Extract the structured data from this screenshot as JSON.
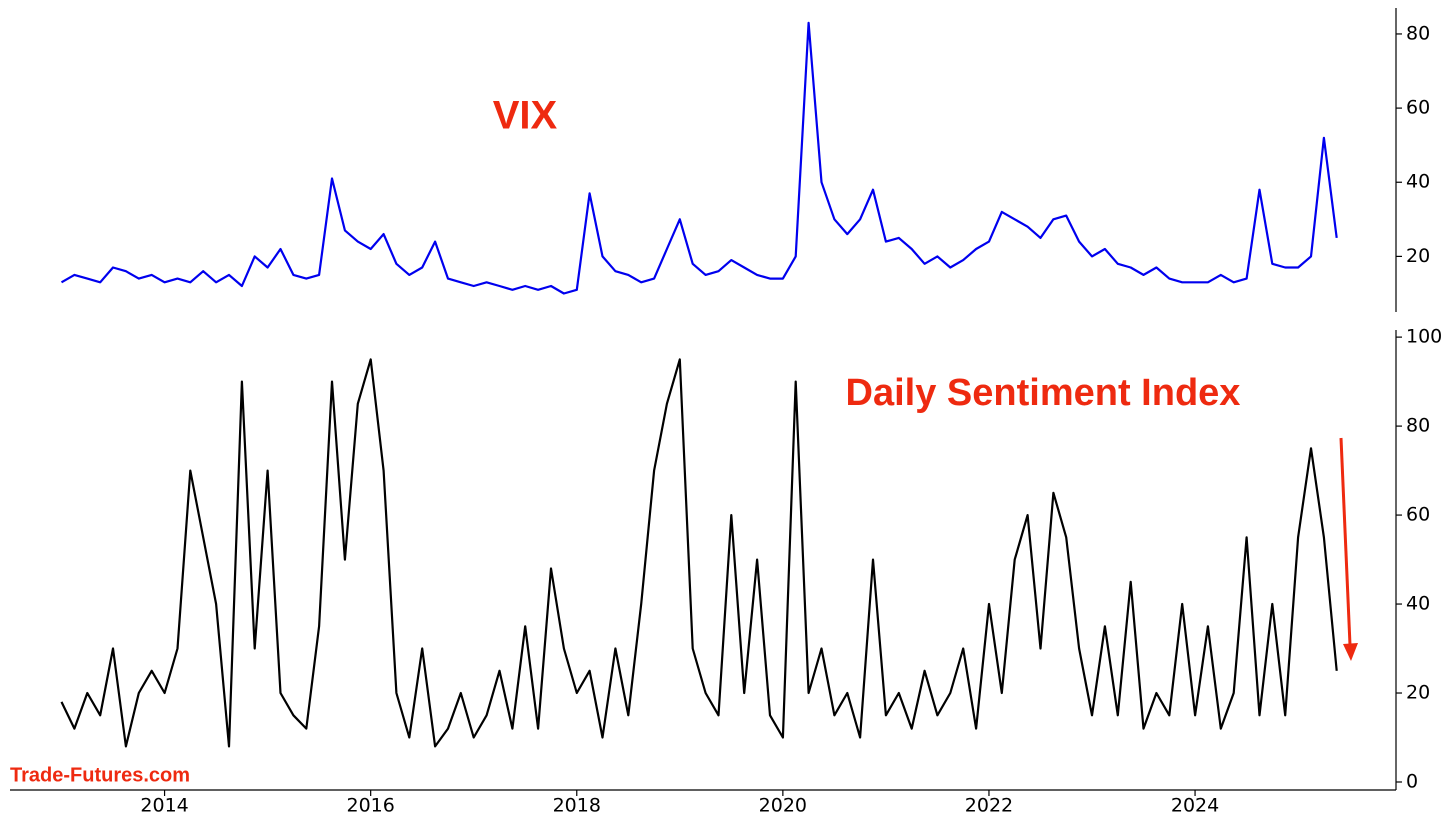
{
  "watermark": "Trade-Futures.com",
  "chart_data": [
    {
      "type": "line",
      "annotation": "VIX",
      "annotation_color": "#ee2a10",
      "xlim": [
        2012.5,
        2025.95
      ],
      "ylim": [
        5,
        87
      ],
      "yticks": [
        20,
        40,
        60,
        80
      ],
      "y_axis_side": "right",
      "x": [
        2013.0,
        2013.125,
        2013.25,
        2013.375,
        2013.5,
        2013.625,
        2013.75,
        2013.875,
        2014.0,
        2014.125,
        2014.25,
        2014.375,
        2014.5,
        2014.625,
        2014.75,
        2014.875,
        2015.0,
        2015.125,
        2015.25,
        2015.375,
        2015.5,
        2015.625,
        2015.75,
        2015.875,
        2016.0,
        2016.125,
        2016.25,
        2016.375,
        2016.5,
        2016.625,
        2016.75,
        2016.875,
        2017.0,
        2017.125,
        2017.25,
        2017.375,
        2017.5,
        2017.625,
        2017.75,
        2017.875,
        2018.0,
        2018.125,
        2018.25,
        2018.375,
        2018.5,
        2018.625,
        2018.75,
        2018.875,
        2019.0,
        2019.125,
        2019.25,
        2019.375,
        2019.5,
        2019.625,
        2019.75,
        2019.875,
        2020.0,
        2020.125,
        2020.25,
        2020.375,
        2020.5,
        2020.625,
        2020.75,
        2020.875,
        2021.0,
        2021.125,
        2021.25,
        2021.375,
        2021.5,
        2021.625,
        2021.75,
        2021.875,
        2022.0,
        2022.125,
        2022.25,
        2022.375,
        2022.5,
        2022.625,
        2022.75,
        2022.875,
        2023.0,
        2023.125,
        2023.25,
        2023.375,
        2023.5,
        2023.625,
        2023.75,
        2023.875,
        2024.0,
        2024.125,
        2024.25,
        2024.375,
        2024.5,
        2024.625,
        2024.75,
        2024.875,
        2025.0,
        2025.125,
        2025.25,
        2025.375
      ],
      "series": [
        {
          "name": "VIX",
          "color": "#0000ee",
          "values": [
            13,
            15,
            14,
            13,
            17,
            16,
            14,
            15,
            13,
            14,
            13,
            16,
            13,
            15,
            12,
            20,
            17,
            22,
            15,
            14,
            15,
            41,
            27,
            24,
            22,
            26,
            18,
            15,
            17,
            24,
            14,
            13,
            12,
            13,
            12,
            11,
            12,
            11,
            12,
            10,
            11,
            37,
            20,
            16,
            15,
            13,
            14,
            22,
            30,
            18,
            15,
            16,
            19,
            17,
            15,
            14,
            14,
            20,
            83,
            40,
            30,
            26,
            30,
            38,
            24,
            25,
            22,
            18,
            20,
            17,
            19,
            22,
            24,
            32,
            30,
            28,
            25,
            30,
            31,
            24,
            20,
            22,
            18,
            17,
            15,
            17,
            14,
            13,
            13,
            13,
            15,
            13,
            14,
            38,
            18,
            17,
            17,
            20,
            52,
            25
          ]
        }
      ]
    },
    {
      "type": "line",
      "annotation": "Daily Sentiment Index",
      "annotation_color": "#ee2a10",
      "xlim": [
        2012.5,
        2025.95
      ],
      "ylim": [
        -1.8,
        101.6
      ],
      "yticks": [
        0,
        20,
        40,
        60,
        80,
        100
      ],
      "y_axis_side": "right",
      "xticks": [
        2014,
        2016,
        2018,
        2020,
        2022,
        2024
      ],
      "x": [
        2013.0,
        2013.125,
        2013.25,
        2013.375,
        2013.5,
        2013.625,
        2013.75,
        2013.875,
        2014.0,
        2014.125,
        2014.25,
        2014.375,
        2014.5,
        2014.625,
        2014.75,
        2014.875,
        2015.0,
        2015.125,
        2015.25,
        2015.375,
        2015.5,
        2015.625,
        2015.75,
        2015.875,
        2016.0,
        2016.125,
        2016.25,
        2016.375,
        2016.5,
        2016.625,
        2016.75,
        2016.875,
        2017.0,
        2017.125,
        2017.25,
        2017.375,
        2017.5,
        2017.625,
        2017.75,
        2017.875,
        2018.0,
        2018.125,
        2018.25,
        2018.375,
        2018.5,
        2018.625,
        2018.75,
        2018.875,
        2019.0,
        2019.125,
        2019.25,
        2019.375,
        2019.5,
        2019.625,
        2019.75,
        2019.875,
        2020.0,
        2020.125,
        2020.25,
        2020.375,
        2020.5,
        2020.625,
        2020.75,
        2020.875,
        2021.0,
        2021.125,
        2021.25,
        2021.375,
        2021.5,
        2021.625,
        2021.75,
        2021.875,
        2022.0,
        2022.125,
        2022.25,
        2022.375,
        2022.5,
        2022.625,
        2022.75,
        2022.875,
        2023.0,
        2023.125,
        2023.25,
        2023.375,
        2023.5,
        2023.625,
        2023.75,
        2023.875,
        2024.0,
        2024.125,
        2024.25,
        2024.375,
        2024.5,
        2024.625,
        2024.75,
        2024.875,
        2025.0,
        2025.125,
        2025.25,
        2025.375
      ],
      "series": [
        {
          "name": "Daily Sentiment Index",
          "color": "#000000",
          "values": [
            18,
            12,
            20,
            15,
            30,
            8,
            20,
            25,
            20,
            30,
            70,
            55,
            40,
            8,
            90,
            30,
            70,
            20,
            15,
            12,
            35,
            90,
            50,
            85,
            95,
            70,
            20,
            10,
            30,
            8,
            12,
            20,
            10,
            15,
            25,
            12,
            35,
            12,
            48,
            30,
            20,
            25,
            10,
            30,
            15,
            40,
            70,
            85,
            95,
            30,
            20,
            15,
            60,
            20,
            50,
            15,
            10,
            90,
            20,
            30,
            15,
            20,
            10,
            50,
            15,
            20,
            12,
            25,
            15,
            20,
            30,
            12,
            40,
            20,
            50,
            60,
            30,
            65,
            55,
            30,
            15,
            35,
            15,
            45,
            12,
            20,
            15,
            40,
            15,
            35,
            12,
            20,
            55,
            15,
            40,
            15,
            55,
            75,
            55,
            25
          ]
        }
      ]
    }
  ]
}
